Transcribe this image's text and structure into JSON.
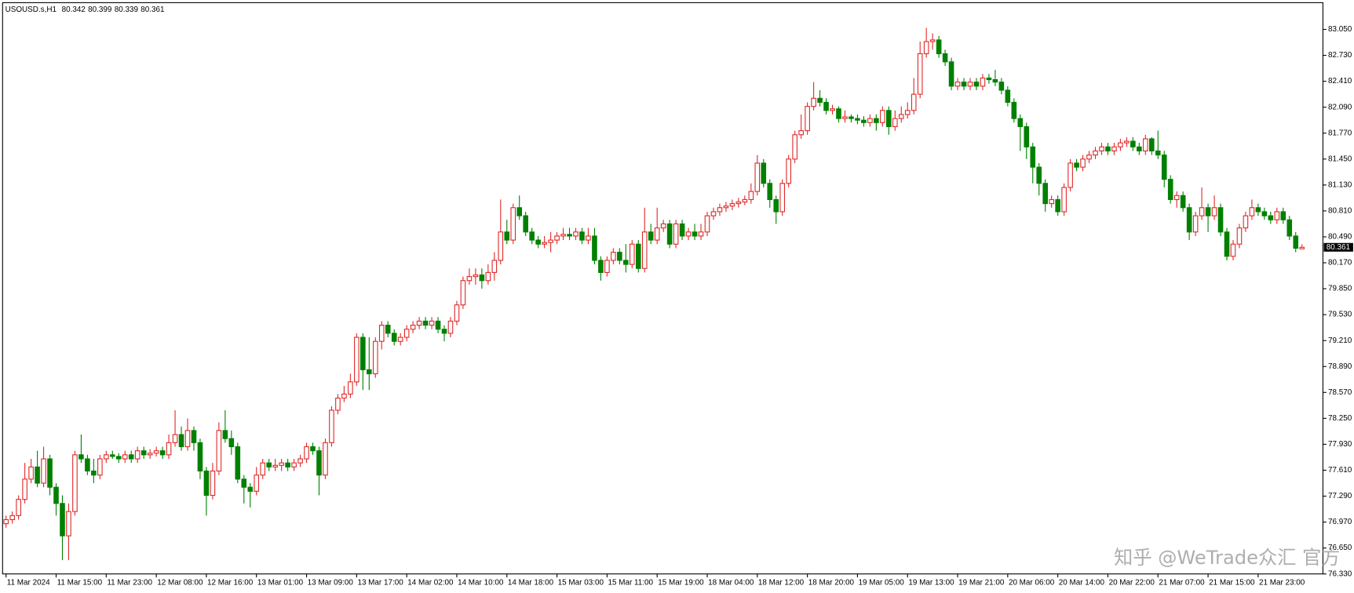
{
  "chart_data": {
    "type": "candlestick",
    "title": "USOUSD.s,H1",
    "watermark": "知乎 @WeTrade众汇 官方",
    "up_color": "#e02828",
    "down_color": "#008000",
    "grid": false,
    "current_price": 80.361,
    "ylim": [
      76.33,
      83.38
    ],
    "yticks": [
      {
        "value": 83.05,
        "label": "83.050"
      },
      {
        "value": 82.73,
        "label": "82.730"
      },
      {
        "value": 82.41,
        "label": "82.410"
      },
      {
        "value": 82.09,
        "label": "82.090"
      },
      {
        "value": 81.77,
        "label": "81.770"
      },
      {
        "value": 81.45,
        "label": "81.450"
      },
      {
        "value": 81.13,
        "label": "81.130"
      },
      {
        "value": 80.81,
        "label": "80.810"
      },
      {
        "value": 80.49,
        "label": "80.490"
      },
      {
        "value": 80.17,
        "label": "80.170"
      },
      {
        "value": 79.85,
        "label": "79.850"
      },
      {
        "value": 79.53,
        "label": "79.530"
      },
      {
        "value": 79.21,
        "label": "79.210"
      },
      {
        "value": 78.89,
        "label": "78.890"
      },
      {
        "value": 78.57,
        "label": "78.570"
      },
      {
        "value": 78.25,
        "label": "78.250"
      },
      {
        "value": 77.93,
        "label": "77.930"
      },
      {
        "value": 77.61,
        "label": "77.610"
      },
      {
        "value": 77.29,
        "label": "77.290"
      },
      {
        "value": 76.97,
        "label": "76.970"
      },
      {
        "value": 76.65,
        "label": "76.650"
      },
      {
        "value": 76.33,
        "label": "76.330"
      }
    ],
    "categories": [
      "11 Mar 2024",
      null,
      null,
      null,
      null,
      null,
      null,
      null,
      "11 Mar 15:00",
      null,
      null,
      null,
      null,
      null,
      null,
      null,
      "11 Mar 23:00",
      null,
      null,
      null,
      null,
      null,
      null,
      null,
      "12 Mar 08:00",
      null,
      null,
      null,
      null,
      null,
      null,
      null,
      "12 Mar 16:00",
      null,
      null,
      null,
      null,
      null,
      null,
      null,
      "13 Mar 01:00",
      null,
      null,
      null,
      null,
      null,
      null,
      null,
      "13 Mar 09:00",
      null,
      null,
      null,
      null,
      null,
      null,
      null,
      "13 Mar 17:00",
      null,
      null,
      null,
      null,
      null,
      null,
      null,
      "14 Mar 02:00",
      null,
      null,
      null,
      null,
      null,
      null,
      null,
      "14 Mar 10:00",
      null,
      null,
      null,
      null,
      null,
      null,
      null,
      "14 Mar 18:00",
      null,
      null,
      null,
      null,
      null,
      null,
      null,
      "15 Mar 03:00",
      null,
      null,
      null,
      null,
      null,
      null,
      null,
      "15 Mar 11:00",
      null,
      null,
      null,
      null,
      null,
      null,
      null,
      "15 Mar 19:00",
      null,
      null,
      null,
      null,
      null,
      null,
      null,
      "18 Mar 04:00",
      null,
      null,
      null,
      null,
      null,
      null,
      null,
      "18 Mar 12:00",
      null,
      null,
      null,
      null,
      null,
      null,
      null,
      "18 Mar 20:00",
      null,
      null,
      null,
      null,
      null,
      null,
      null,
      "19 Mar 05:00",
      null,
      null,
      null,
      null,
      null,
      null,
      null,
      "19 Mar 13:00",
      null,
      null,
      null,
      null,
      null,
      null,
      null,
      "19 Mar 21:00",
      null,
      null,
      null,
      null,
      null,
      null,
      null,
      "20 Mar 06:00",
      null,
      null,
      null,
      null,
      null,
      null,
      null,
      "20 Mar 14:00",
      null,
      null,
      null,
      null,
      null,
      null,
      null,
      "20 Mar 22:00",
      null,
      null,
      null,
      null,
      null,
      null,
      null,
      "21 Mar 07:00",
      null,
      null,
      null,
      null,
      null,
      null,
      null,
      "21 Mar 15:00",
      null,
      null,
      null,
      null,
      null,
      null,
      null,
      "21 Mar 23:00",
      null,
      null,
      null,
      null,
      null,
      null,
      null
    ],
    "open": [
      76.95,
      77.0,
      77.05,
      77.25,
      77.5,
      77.65,
      77.45,
      77.75,
      77.4,
      77.2,
      76.8,
      77.1,
      77.8,
      77.75,
      77.6,
      77.55,
      77.75,
      77.8,
      77.78,
      77.75,
      77.8,
      77.75,
      77.85,
      77.8,
      77.82,
      77.85,
      77.8,
      77.95,
      78.05,
      77.9,
      78.1,
      77.95,
      77.6,
      77.3,
      77.6,
      78.1,
      78.0,
      77.9,
      77.5,
      77.4,
      77.35,
      77.55,
      77.7,
      77.65,
      77.67,
      77.7,
      77.65,
      77.7,
      77.75,
      77.9,
      77.85,
      77.55,
      77.95,
      78.35,
      78.5,
      78.55,
      78.7,
      79.25,
      78.85,
      78.8,
      79.2,
      79.4,
      79.3,
      79.2,
      79.25,
      79.35,
      79.4,
      79.45,
      79.4,
      79.45,
      79.35,
      79.3,
      79.45,
      79.65,
      79.95,
      80.0,
      80.02,
      79.95,
      80.05,
      80.2,
      80.55,
      80.45,
      80.85,
      80.75,
      80.55,
      80.45,
      80.4,
      80.42,
      80.45,
      80.5,
      80.52,
      80.5,
      80.55,
      80.45,
      80.5,
      80.2,
      80.05,
      80.2,
      80.3,
      80.2,
      80.15,
      80.4,
      80.1,
      80.55,
      80.45,
      80.6,
      80.65,
      80.4,
      80.65,
      80.5,
      80.55,
      80.5,
      80.55,
      80.75,
      80.8,
      80.85,
      80.87,
      80.9,
      80.92,
      80.95,
      81.05,
      81.4,
      81.15,
      80.95,
      80.8,
      81.15,
      81.45,
      81.75,
      81.8,
      82.1,
      82.2,
      82.15,
      82.05,
      82.07,
      81.95,
      81.97,
      81.95,
      81.93,
      81.9,
      81.95,
      81.9,
      82.05,
      81.85,
      81.95,
      82.0,
      82.05,
      82.25,
      82.75,
      82.9,
      82.92,
      82.75,
      82.65,
      82.35,
      82.4,
      82.35,
      82.4,
      82.35,
      82.45,
      82.43,
      82.4,
      82.3,
      82.15,
      81.95,
      81.85,
      81.6,
      81.35,
      81.15,
      80.9,
      80.95,
      80.8,
      81.1,
      81.4,
      81.35,
      81.45,
      81.5,
      81.55,
      81.6,
      81.55,
      81.6,
      81.65,
      81.67,
      81.6,
      81.55,
      81.7,
      81.55,
      81.5,
      81.2,
      80.95,
      81.0,
      80.85,
      80.55,
      80.75,
      80.85,
      80.75,
      80.85,
      80.55,
      80.25,
      80.4,
      80.6,
      80.75,
      80.85,
      80.8,
      80.75,
      80.7,
      80.8,
      80.7,
      80.5,
      80.342
    ],
    "high": [
      77.05,
      77.1,
      77.3,
      77.7,
      77.75,
      77.85,
      77.9,
      77.8,
      77.45,
      77.3,
      77.2,
      77.85,
      78.05,
      77.8,
      77.75,
      77.8,
      77.85,
      77.85,
      77.82,
      77.85,
      77.85,
      77.9,
      77.9,
      77.87,
      77.9,
      77.9,
      78.05,
      78.35,
      78.15,
      78.25,
      78.15,
      78.0,
      77.65,
      77.7,
      78.2,
      78.35,
      78.1,
      77.95,
      77.55,
      77.45,
      77.65,
      77.75,
      77.75,
      77.75,
      77.75,
      77.75,
      77.75,
      77.8,
      77.95,
      77.95,
      77.9,
      78.0,
      78.4,
      78.55,
      78.65,
      78.8,
      79.3,
      79.3,
      79.25,
      79.25,
      79.45,
      79.45,
      79.35,
      79.3,
      79.4,
      79.45,
      79.5,
      79.5,
      79.5,
      79.5,
      79.4,
      79.5,
      79.7,
      80.0,
      80.1,
      80.1,
      80.1,
      80.15,
      80.3,
      80.95,
      80.7,
      80.9,
      81.0,
      80.8,
      80.6,
      80.5,
      80.5,
      80.55,
      80.55,
      80.6,
      80.6,
      80.6,
      80.6,
      80.6,
      80.6,
      80.25,
      80.25,
      80.35,
      80.35,
      80.4,
      80.45,
      80.45,
      80.85,
      80.65,
      80.85,
      80.7,
      80.7,
      80.7,
      80.7,
      80.6,
      80.65,
      80.65,
      80.8,
      80.85,
      80.9,
      80.92,
      80.95,
      80.97,
      81.0,
      81.15,
      81.5,
      81.45,
      81.2,
      81.0,
      81.2,
      81.5,
      81.8,
      82.0,
      82.15,
      82.4,
      82.3,
      82.2,
      82.12,
      82.1,
      82.05,
      82.0,
      82.0,
      81.98,
      82.0,
      82.0,
      82.1,
      82.1,
      82.05,
      82.1,
      82.15,
      82.45,
      82.9,
      83.07,
      83.0,
      82.97,
      82.8,
      82.7,
      82.45,
      82.45,
      82.45,
      82.45,
      82.5,
      82.5,
      82.55,
      82.45,
      82.35,
      82.2,
      82.0,
      81.9,
      81.65,
      81.4,
      81.2,
      81.0,
      81.0,
      81.15,
      81.45,
      81.45,
      81.5,
      81.55,
      81.6,
      81.65,
      81.65,
      81.65,
      81.7,
      81.72,
      81.72,
      81.65,
      81.75,
      81.72,
      81.8,
      81.55,
      81.25,
      81.05,
      81.05,
      80.9,
      80.8,
      81.1,
      80.9,
      81.0,
      80.9,
      80.6,
      80.45,
      80.65,
      80.8,
      80.95,
      80.9,
      80.85,
      80.8,
      80.85,
      80.85,
      80.75,
      80.55,
      80.399
    ],
    "low": [
      76.9,
      76.95,
      77.0,
      77.2,
      77.45,
      77.4,
      77.4,
      77.3,
      77.05,
      76.5,
      76.5,
      77.05,
      77.7,
      77.55,
      77.45,
      77.5,
      77.7,
      77.75,
      77.7,
      77.7,
      77.7,
      77.7,
      77.75,
      77.75,
      77.78,
      77.75,
      77.75,
      77.9,
      77.85,
      77.85,
      77.85,
      77.5,
      77.05,
      77.25,
      77.55,
      77.95,
      77.8,
      77.45,
      77.2,
      77.15,
      77.3,
      77.5,
      77.6,
      77.6,
      77.6,
      77.6,
      77.6,
      77.65,
      77.7,
      77.8,
      77.3,
      77.5,
      77.9,
      78.3,
      78.45,
      78.5,
      78.65,
      78.6,
      78.6,
      78.75,
      79.1,
      79.25,
      79.15,
      79.15,
      79.2,
      79.3,
      79.35,
      79.35,
      79.35,
      79.3,
      79.2,
      79.25,
      79.4,
      79.6,
      79.9,
      79.9,
      79.85,
      79.9,
      79.95,
      80.15,
      80.4,
      80.4,
      80.7,
      80.5,
      80.4,
      80.35,
      80.35,
      80.3,
      80.4,
      80.45,
      80.45,
      80.45,
      80.4,
      80.4,
      80.15,
      79.95,
      80.0,
      80.15,
      80.15,
      80.05,
      80.1,
      80.05,
      80.05,
      80.4,
      80.4,
      80.55,
      80.35,
      80.35,
      80.45,
      80.45,
      80.45,
      80.45,
      80.5,
      80.7,
      80.75,
      80.8,
      80.82,
      80.85,
      80.88,
      80.9,
      81.0,
      81.1,
      80.85,
      80.65,
      80.75,
      81.1,
      81.4,
      81.7,
      81.75,
      82.05,
      82.1,
      82.0,
      82.0,
      81.9,
      81.9,
      81.9,
      81.88,
      81.85,
      81.85,
      81.8,
      81.85,
      81.75,
      81.8,
      81.9,
      81.95,
      82.0,
      82.2,
      82.7,
      82.8,
      82.7,
      82.6,
      82.3,
      82.3,
      82.3,
      82.3,
      82.3,
      82.3,
      82.38,
      82.35,
      82.25,
      82.1,
      81.9,
      81.55,
      81.45,
      81.15,
      81.0,
      80.8,
      80.85,
      80.75,
      80.75,
      81.05,
      81.3,
      81.3,
      81.4,
      81.45,
      81.5,
      81.5,
      81.5,
      81.55,
      81.6,
      81.55,
      81.5,
      81.5,
      81.5,
      81.45,
      81.1,
      80.9,
      80.85,
      80.8,
      80.45,
      80.5,
      80.7,
      80.55,
      80.7,
      80.5,
      80.2,
      80.2,
      80.35,
      80.55,
      80.7,
      80.75,
      80.7,
      80.65,
      80.65,
      80.65,
      80.45,
      80.3,
      80.339
    ],
    "close": [
      77.0,
      77.05,
      77.25,
      77.5,
      77.65,
      77.45,
      77.75,
      77.4,
      77.2,
      76.8,
      77.1,
      77.8,
      77.75,
      77.6,
      77.55,
      77.75,
      77.8,
      77.78,
      77.75,
      77.8,
      77.75,
      77.85,
      77.8,
      77.82,
      77.85,
      77.8,
      77.95,
      78.05,
      77.9,
      78.1,
      77.95,
      77.6,
      77.3,
      77.6,
      78.1,
      78.0,
      77.9,
      77.5,
      77.4,
      77.35,
      77.55,
      77.7,
      77.65,
      77.67,
      77.7,
      77.65,
      77.7,
      77.75,
      77.9,
      77.85,
      77.55,
      77.95,
      78.35,
      78.5,
      78.55,
      78.7,
      79.25,
      78.85,
      78.8,
      79.2,
      79.4,
      79.3,
      79.2,
      79.25,
      79.35,
      79.4,
      79.45,
      79.4,
      79.45,
      79.35,
      79.3,
      79.45,
      79.65,
      79.95,
      80.0,
      80.02,
      79.95,
      80.05,
      80.2,
      80.55,
      80.45,
      80.85,
      80.75,
      80.55,
      80.45,
      80.4,
      80.42,
      80.45,
      80.5,
      80.52,
      80.5,
      80.55,
      80.45,
      80.5,
      80.2,
      80.05,
      80.2,
      80.3,
      80.2,
      80.15,
      80.4,
      80.1,
      80.55,
      80.45,
      80.6,
      80.65,
      80.4,
      80.65,
      80.5,
      80.55,
      80.5,
      80.55,
      80.75,
      80.8,
      80.85,
      80.87,
      80.9,
      80.92,
      80.95,
      81.05,
      81.4,
      81.15,
      80.95,
      80.8,
      81.15,
      81.45,
      81.75,
      81.8,
      82.1,
      82.2,
      82.15,
      82.05,
      82.07,
      81.95,
      81.97,
      81.95,
      81.93,
      81.9,
      81.95,
      81.9,
      82.05,
      81.85,
      81.95,
      82.0,
      82.05,
      82.25,
      82.75,
      82.9,
      82.92,
      82.75,
      82.65,
      82.35,
      82.4,
      82.35,
      82.4,
      82.35,
      82.45,
      82.43,
      82.4,
      82.3,
      82.15,
      81.95,
      81.85,
      81.6,
      81.35,
      81.15,
      80.9,
      80.95,
      80.8,
      81.1,
      81.4,
      81.35,
      81.45,
      81.5,
      81.55,
      81.6,
      81.55,
      81.6,
      81.65,
      81.67,
      81.6,
      81.55,
      81.7,
      81.55,
      81.5,
      81.2,
      80.95,
      81.0,
      80.85,
      80.55,
      80.75,
      80.85,
      80.75,
      80.85,
      80.55,
      80.25,
      80.4,
      80.6,
      80.75,
      80.85,
      80.8,
      80.75,
      80.7,
      80.8,
      80.7,
      80.5,
      80.35,
      80.361
    ]
  }
}
